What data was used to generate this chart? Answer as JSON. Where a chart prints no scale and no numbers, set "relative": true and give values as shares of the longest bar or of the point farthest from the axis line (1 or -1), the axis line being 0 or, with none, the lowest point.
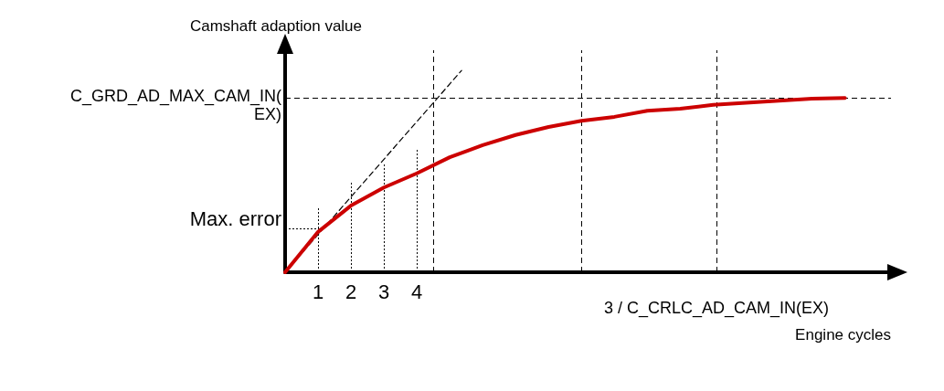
{
  "chart_data": {
    "type": "line",
    "relative": true,
    "xlabel": "Engine cycles",
    "ylabel": "Camshaft adaption value",
    "x": [
      0,
      1,
      2,
      3,
      4,
      5,
      6,
      7,
      8,
      9,
      10,
      11,
      12,
      13,
      14,
      15,
      16,
      17
    ],
    "xlim": [
      0,
      18.4
    ],
    "xticks": [
      1,
      2,
      3,
      4
    ],
    "marker": "none",
    "grid": false,
    "line_style": "solid",
    "series": [
      {
        "color": "#cc0000",
        "values": [
          0,
          0.2,
          0.33,
          0.42,
          0.49,
          0.57,
          0.63,
          0.68,
          0.72,
          0.75,
          0.77,
          0.8,
          0.81,
          0.83,
          0.84,
          0.85,
          0.86,
          0.864
        ]
      },
      {
        "color": "#000000",
        "x": [
          0,
          5.36
        ],
        "values": [
          0,
          1
        ],
        "line_style": "dashed"
      }
    ],
    "ref_lines": [
      {
        "axis": "y",
        "value": 0.864,
        "label": "C_GRD_AD_MAX_CAM_IN(EX)",
        "line_style": "dashed"
      },
      {
        "axis": "y",
        "value": 0.218,
        "label": "Max. error",
        "line_style": "dotted"
      },
      {
        "axis": "x",
        "value": 4.5,
        "label": null,
        "line_style": "dashed"
      },
      {
        "axis": "x",
        "value": 9,
        "label": null,
        "line_style": "dashed"
      },
      {
        "axis": "x",
        "value": 13.1,
        "label": "3 / C_CRLC_AD_CAM_IN(EX)",
        "line_style": "dashed"
      },
      {
        "axis": "x",
        "value": 1,
        "label": null,
        "line_style": "dotted"
      },
      {
        "axis": "x",
        "value": 2,
        "label": null,
        "line_style": "dotted"
      },
      {
        "axis": "x",
        "value": 3,
        "label": null,
        "line_style": "dotted"
      },
      {
        "axis": "x",
        "value": 4,
        "label": null,
        "line_style": "dotted"
      }
    ]
  }
}
